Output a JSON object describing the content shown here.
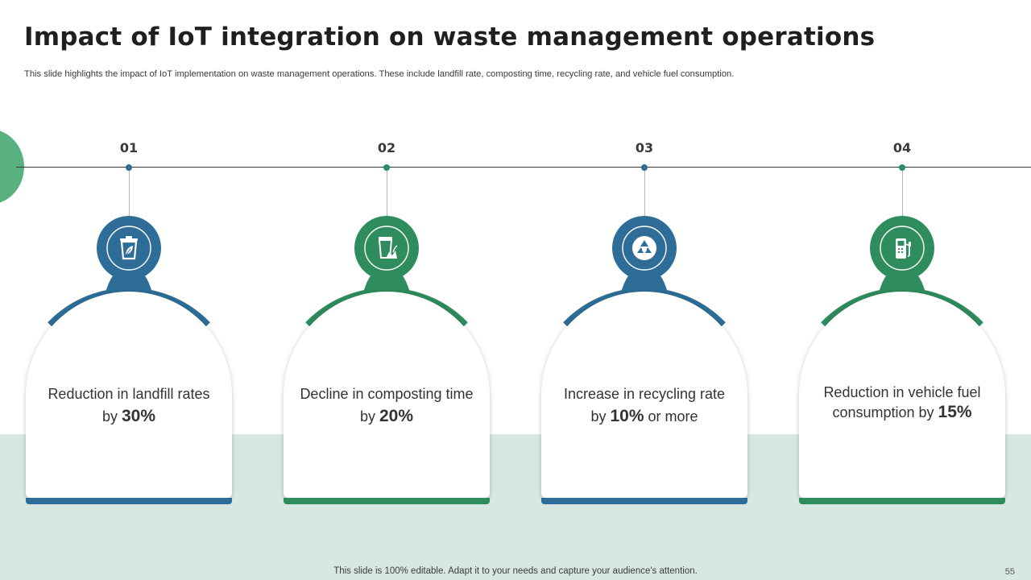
{
  "slide": {
    "title": "Impact of IoT integration on waste management operations",
    "subtitle": "This slide highlights the impact of IoT  implementation on waste management operations. These include landfill rate, composting time, recycling rate, and vehicle fuel consumption.",
    "footer": "This slide is 100% editable. Adapt it to your needs and capture your audience's attention.",
    "page_number": "55"
  },
  "colors": {
    "blue": "#2e6d98",
    "green": "#2f8c5c",
    "band": "#d8e7df",
    "accent": "#58b17e"
  },
  "steps": [
    {
      "number": "01",
      "icon": "trash-bin-icon",
      "text_before": "Reduction in landfill rates by ",
      "highlight": "30%",
      "text_after": ""
    },
    {
      "number": "02",
      "icon": "compost-bin-icon",
      "text_before": "Decline in composting time by ",
      "highlight": "20%",
      "text_after": ""
    },
    {
      "number": "03",
      "icon": "recycle-icon",
      "text_before": "Increase in recycling rate by ",
      "highlight": "10%",
      "text_after": "  or more"
    },
    {
      "number": "04",
      "icon": "fuel-pump-icon",
      "text_before": "Reduction in vehicle fuel consumption by ",
      "highlight": "15%",
      "text_after": ""
    }
  ]
}
